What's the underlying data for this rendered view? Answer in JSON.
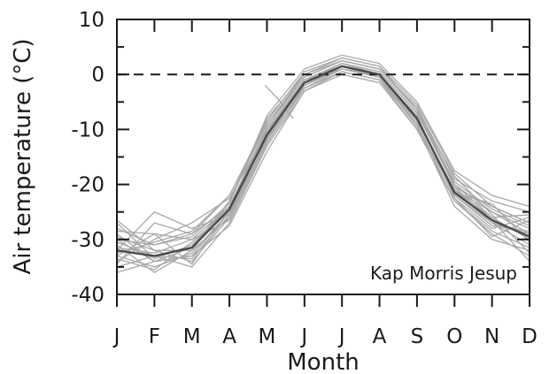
{
  "chart_data": {
    "type": "line",
    "xlabel": "Month",
    "ylabel": "Air temperature (°C)",
    "annotation": "Kap Morris Jesup",
    "categories": [
      "J",
      "F",
      "M",
      "A",
      "M",
      "J",
      "J",
      "A",
      "S",
      "O",
      "N",
      "D"
    ],
    "yticks": [
      "10",
      "0",
      "-10",
      "-20",
      "-30",
      "-40"
    ],
    "ylim": [
      -40,
      10
    ],
    "reference_line": {
      "y": 0,
      "style": "dashed"
    },
    "colors": {
      "series": "#a8a8a8",
      "mean": "#4a4a4a",
      "axis": "#1a1a1a"
    },
    "mean_values": [
      -32.0,
      -33.0,
      -31.5,
      -24.5,
      -11.0,
      -1.5,
      1.5,
      0.0,
      -8.0,
      -21.5,
      -26.5,
      -29.5
    ],
    "series": [
      {
        "values": [
          -28.0,
          -31.0,
          -29.0,
          -22.0,
          -9.0,
          -0.5,
          2.5,
          1.0,
          -6.0,
          -19.0,
          -23.0,
          -25.0
        ]
      },
      {
        "values": [
          -30.0,
          -34.0,
          -33.0,
          -25.0,
          -12.0,
          -2.0,
          1.0,
          -0.5,
          -9.0,
          -22.0,
          -27.0,
          -31.0
        ]
      },
      {
        "values": [
          -33.0,
          -29.0,
          -30.0,
          -24.0,
          -10.0,
          -1.0,
          2.0,
          0.5,
          -7.0,
          -20.0,
          -25.0,
          -28.0
        ]
      },
      {
        "values": [
          -35.0,
          -33.0,
          -35.0,
          -27.0,
          -13.0,
          -3.0,
          0.5,
          -1.0,
          -10.0,
          -23.0,
          -29.0,
          -33.0
        ]
      },
      {
        "values": [
          -31.0,
          -36.0,
          -32.0,
          -23.0,
          -8.0,
          0.0,
          3.0,
          1.5,
          -5.5,
          -18.0,
          -24.0,
          -27.0
        ]
      },
      {
        "values": [
          -29.5,
          -32.0,
          -34.0,
          -26.0,
          -11.5,
          -2.5,
          1.0,
          -0.5,
          -8.5,
          -21.0,
          -26.0,
          -30.0
        ]
      },
      {
        "values": [
          -34.0,
          -30.0,
          -27.0,
          -22.5,
          -10.5,
          -1.0,
          2.0,
          0.0,
          -7.5,
          -22.5,
          -28.0,
          -26.0
        ]
      },
      {
        "values": [
          -27.0,
          -33.5,
          -31.0,
          -24.0,
          -9.5,
          -0.5,
          2.5,
          1.0,
          -6.5,
          -20.5,
          -26.5,
          -34.0
        ]
      },
      {
        "values": [
          -32.0,
          -25.0,
          -28.0,
          -25.5,
          -12.0,
          -2.0,
          1.5,
          -0.5,
          -9.5,
          -24.0,
          -30.0,
          -32.0
        ]
      },
      {
        "values": [
          -36.0,
          -34.0,
          -33.0,
          -27.5,
          -14.0,
          -3.0,
          0.0,
          -1.5,
          -10.0,
          -21.0,
          -25.0,
          -29.0
        ]
      },
      {
        "values": [
          -30.0,
          -31.0,
          -29.5,
          -23.5,
          -7.5,
          1.0,
          3.5,
          2.0,
          -5.0,
          -17.5,
          -22.0,
          -24.0
        ]
      },
      {
        "values": [
          -33.0,
          -35.0,
          -32.5,
          -25.0,
          -11.0,
          -1.5,
          1.0,
          0.0,
          -8.0,
          -22.0,
          -27.5,
          -28.5
        ]
      },
      {
        "values": [
          -28.5,
          -29.0,
          -34.5,
          -24.5,
          -10.0,
          -1.0,
          2.0,
          0.5,
          -7.0,
          -19.5,
          -24.5,
          -27.5
        ]
      },
      {
        "values": [
          -31.5,
          -32.5,
          -30.0,
          -26.5,
          -12.5,
          -2.5,
          0.5,
          -1.0,
          -9.0,
          -23.0,
          -28.5,
          -31.5
        ]
      },
      {
        "values": [
          -29.0,
          -34.0,
          -31.5,
          -23.0,
          -9.0,
          0.0,
          2.5,
          1.0,
          -6.0,
          -20.0,
          -26.0,
          -25.5
        ]
      },
      {
        "values": [
          -34.5,
          -27.0,
          -29.0,
          -24.0,
          -11.5,
          -1.5,
          1.5,
          0.0,
          -8.0,
          -21.5,
          -23.5,
          -30.5
        ]
      },
      {
        "values": [
          -30.5,
          -33.0,
          -33.5,
          -25.5,
          -10.5,
          -1.0,
          1.0,
          -0.5,
          -7.5,
          -22.5,
          -29.5,
          -26.5
        ]
      },
      {
        "values": [
          -32.5,
          -30.5,
          -28.5,
          -22.0,
          -8.5,
          0.5,
          3.0,
          1.5,
          -6.5,
          -18.5,
          -25.5,
          -32.5
        ]
      },
      {
        "values": [
          -26.5,
          -32.0,
          -32.0,
          -26.0,
          -12.0,
          -2.0,
          1.5,
          0.0,
          -8.5,
          -21.0,
          -27.0,
          -29.0
        ]
      },
      {
        "values": [
          -33.5,
          -35.5,
          -30.5,
          -24.5,
          -10.0,
          -1.5,
          2.0,
          0.5,
          -7.0,
          -20.5,
          -24.0,
          -27.0
        ]
      }
    ],
    "partial_series": {
      "x": [
        3.95,
        4.3,
        4.7
      ],
      "y": [
        -2.0,
        -4.5,
        -8.0
      ]
    }
  }
}
